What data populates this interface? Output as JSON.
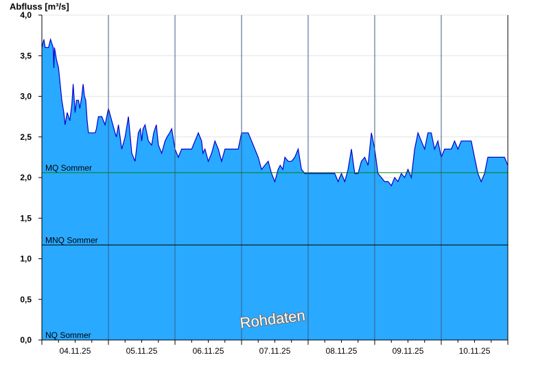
{
  "chart_data": {
    "type": "area",
    "ylabel": "Abfluss [m³/s]",
    "watermark": "Rohdaten",
    "ylim": [
      0,
      4.0
    ],
    "yticks": [
      "0,0",
      "0,5",
      "1,0",
      "1,5",
      "2,0",
      "2,5",
      "3,0",
      "3,5",
      "4,0"
    ],
    "ytick_values": [
      0,
      0.5,
      1.0,
      1.5,
      2.0,
      2.5,
      3.0,
      3.5,
      4.0
    ],
    "xlim": [
      0,
      7
    ],
    "xticks": [
      "04.11.25",
      "05.11.25",
      "06.11.25",
      "07.11.25",
      "08.11.25",
      "09.11.25",
      "10.11.25"
    ],
    "xtick_values": [
      0.5,
      1.5,
      2.5,
      3.5,
      4.5,
      5.5,
      6.5
    ],
    "day_boundaries": [
      1,
      2,
      3,
      4,
      5,
      6
    ],
    "grid": true,
    "colors": {
      "fill": "#29a9ff",
      "line": "#0000cc",
      "mq": "#008000",
      "mnq": "#000000"
    },
    "reference_lines": [
      {
        "label": "MQ Sommer",
        "value": 2.06
      },
      {
        "label": "MNQ Sommer",
        "value": 1.17
      },
      {
        "label": "NQ Sommer",
        "value": 0.0
      }
    ],
    "series": [
      {
        "x": [
          0,
          0.03,
          0.05,
          0.1,
          0.13,
          0.17,
          0.18,
          0.19,
          0.22,
          0.25,
          0.3,
          0.33,
          0.35,
          0.38,
          0.42,
          0.45,
          0.47,
          0.5,
          0.52,
          0.55,
          0.57,
          0.6,
          0.62,
          0.64,
          0.66,
          0.68,
          0.7,
          0.73,
          0.76,
          0.8,
          0.82,
          0.85,
          0.9,
          0.95,
          1.0,
          1.05,
          1.1,
          1.12,
          1.15,
          1.2,
          1.25,
          1.3,
          1.35,
          1.4,
          1.45,
          1.48,
          1.5,
          1.52,
          1.55,
          1.6,
          1.65,
          1.68,
          1.72,
          1.75,
          1.8,
          1.85,
          1.88,
          1.92,
          1.95,
          2.0,
          2.05,
          2.1,
          2.15,
          2.2,
          2.25,
          2.3,
          2.35,
          2.4,
          2.42,
          2.45,
          2.5,
          2.55,
          2.6,
          2.65,
          2.7,
          2.75,
          2.8,
          2.85,
          2.9,
          2.95,
          3.0,
          3.05,
          3.1,
          3.15,
          3.2,
          3.25,
          3.3,
          3.35,
          3.4,
          3.45,
          3.5,
          3.55,
          3.58,
          3.62,
          3.65,
          3.7,
          3.75,
          3.8,
          3.85,
          3.9,
          3.95,
          4.0,
          4.1,
          4.2,
          4.3,
          4.4,
          4.45,
          4.5,
          4.55,
          4.6,
          4.65,
          4.7,
          4.75,
          4.8,
          4.85,
          4.9,
          4.95,
          5.0,
          5.05,
          5.1,
          5.15,
          5.2,
          5.25,
          5.3,
          5.35,
          5.4,
          5.45,
          5.5,
          5.55,
          5.6,
          5.65,
          5.7,
          5.75,
          5.8,
          5.85,
          5.9,
          5.95,
          6.0,
          6.05,
          6.1,
          6.15,
          6.2,
          6.25,
          6.3,
          6.35,
          6.4,
          6.45,
          6.5,
          6.55,
          6.6,
          6.65,
          6.7,
          6.75,
          6.8,
          6.85,
          6.9,
          6.95,
          7.0
        ],
        "y": [
          3.6,
          3.7,
          3.6,
          3.6,
          3.7,
          3.6,
          3.35,
          3.6,
          3.45,
          3.35,
          2.95,
          2.8,
          2.65,
          2.8,
          2.7,
          2.9,
          3.15,
          2.8,
          2.95,
          2.95,
          2.85,
          3.0,
          3.15,
          3.0,
          2.95,
          2.7,
          2.55,
          2.55,
          2.55,
          2.55,
          2.6,
          2.75,
          2.75,
          2.65,
          2.85,
          2.7,
          2.55,
          2.5,
          2.65,
          2.35,
          2.5,
          2.75,
          2.3,
          2.2,
          2.55,
          2.6,
          2.45,
          2.6,
          2.65,
          2.45,
          2.4,
          2.55,
          2.65,
          2.4,
          2.3,
          2.45,
          2.5,
          2.55,
          2.6,
          2.35,
          2.25,
          2.35,
          2.35,
          2.35,
          2.35,
          2.45,
          2.55,
          2.45,
          2.3,
          2.35,
          2.2,
          2.3,
          2.45,
          2.35,
          2.2,
          2.35,
          2.35,
          2.35,
          2.35,
          2.35,
          2.55,
          2.55,
          2.55,
          2.45,
          2.35,
          2.25,
          2.1,
          2.15,
          2.2,
          2.05,
          1.95,
          2.1,
          2.15,
          2.1,
          2.25,
          2.2,
          2.2,
          2.25,
          2.35,
          2.1,
          2.05,
          2.05,
          2.05,
          2.05,
          2.05,
          2.05,
          1.95,
          2.05,
          1.95,
          2.1,
          2.35,
          2.05,
          2.05,
          2.2,
          2.25,
          2.15,
          2.55,
          2.35,
          2.05,
          2.0,
          1.95,
          1.95,
          1.9,
          2.0,
          1.95,
          2.05,
          2.0,
          2.1,
          2.0,
          2.35,
          2.55,
          2.45,
          2.35,
          2.55,
          2.55,
          2.35,
          2.45,
          2.25,
          2.35,
          2.35,
          2.35,
          2.45,
          2.35,
          2.45,
          2.45,
          2.45,
          2.45,
          2.25,
          2.05,
          1.95,
          2.05,
          2.25,
          2.25,
          2.25,
          2.25,
          2.25,
          2.25,
          2.15
        ]
      }
    ]
  }
}
